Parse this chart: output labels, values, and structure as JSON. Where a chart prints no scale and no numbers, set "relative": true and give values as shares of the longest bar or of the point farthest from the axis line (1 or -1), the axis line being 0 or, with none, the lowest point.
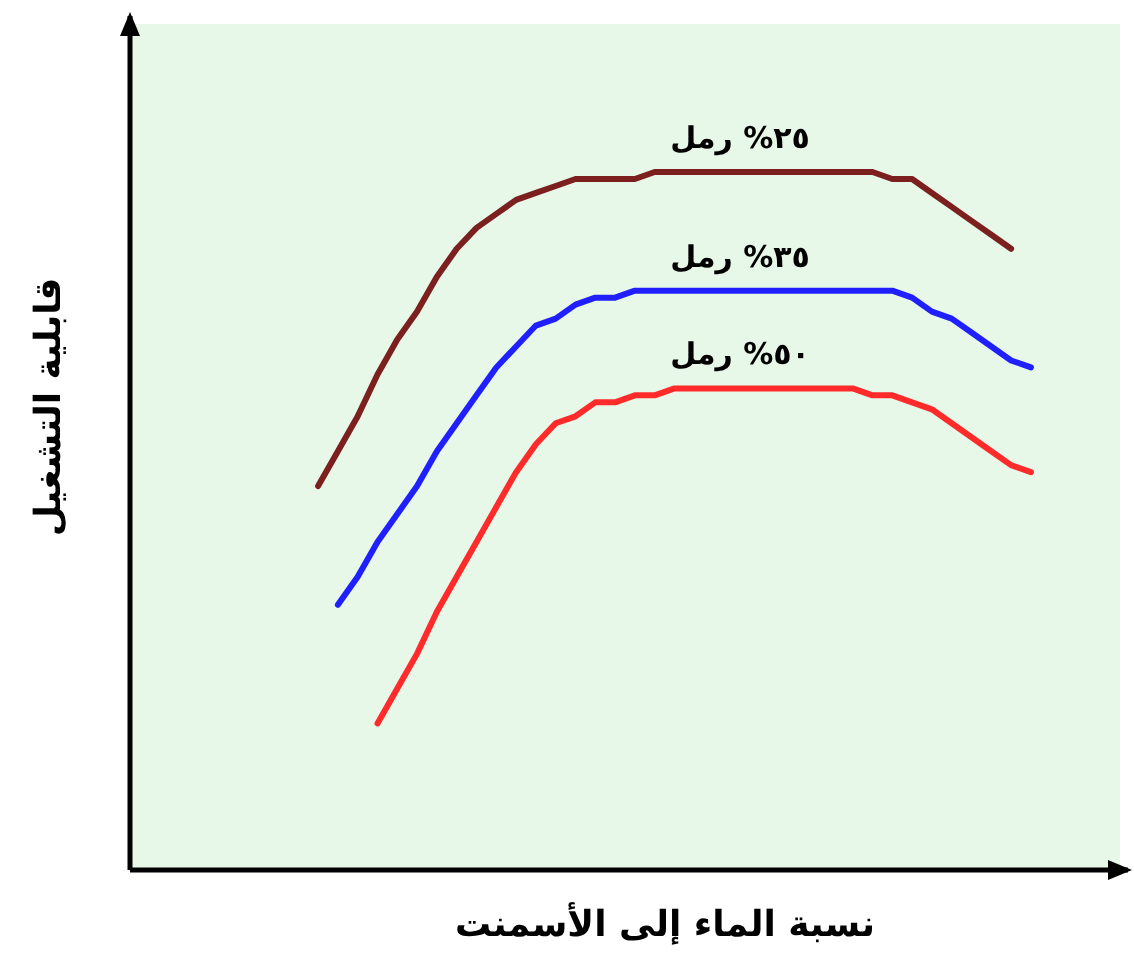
{
  "chart_data": {
    "type": "line",
    "relative": true,
    "xlabel": "نسبة الماء إلى الأسمنت",
    "ylabel": "قابلية التشغيل",
    "categories": [
      null,
      null,
      null,
      null,
      null,
      null,
      null,
      null,
      null,
      null,
      null,
      null,
      null,
      null,
      null,
      null,
      null,
      null,
      null,
      null,
      null,
      null,
      null,
      null,
      null,
      null,
      null,
      null,
      null,
      null,
      null,
      null,
      null,
      null,
      null,
      null,
      null,
      null,
      null,
      null,
      null,
      null,
      null,
      null,
      null,
      null,
      null,
      null,
      null,
      null
    ],
    "series": [
      {
        "name": "٢٥% رمل",
        "color": "#7b1f1f",
        "values": [
          null,
          null,
          null,
          null,
          null,
          null,
          null,
          null,
          null,
          0.55,
          0.6,
          0.65,
          0.71,
          0.76,
          0.8,
          0.85,
          0.89,
          0.92,
          0.94,
          0.96,
          0.97,
          0.98,
          0.99,
          0.99,
          0.99,
          0.99,
          1,
          1,
          1,
          1,
          1,
          1,
          1,
          1,
          1,
          1,
          1,
          1,
          0.99,
          0.99,
          0.97,
          0.95,
          0.93,
          0.91,
          0.89,
          null,
          null,
          null,
          null,
          null
        ]
      },
      {
        "name": "٣٥% رمل",
        "color": "#1f1fff",
        "values": [
          null,
          null,
          null,
          null,
          null,
          null,
          null,
          null,
          null,
          null,
          0.38,
          0.42,
          0.47,
          0.51,
          0.55,
          0.6,
          0.64,
          0.68,
          0.72,
          0.75,
          0.78,
          0.79,
          0.81,
          0.82,
          0.82,
          0.83,
          0.83,
          0.83,
          0.83,
          0.83,
          0.83,
          0.83,
          0.83,
          0.83,
          0.83,
          0.83,
          0.83,
          0.83,
          0.83,
          0.82,
          0.8,
          0.79,
          0.77,
          0.75,
          0.73,
          0.72,
          null,
          null,
          null,
          null
        ]
      },
      {
        "name": "٥٠% رمل",
        "color": "#ff2a2a",
        "values": [
          null,
          null,
          null,
          null,
          null,
          null,
          null,
          null,
          null,
          null,
          null,
          null,
          0.21,
          0.26,
          0.31,
          0.37,
          0.42,
          0.47,
          0.52,
          0.57,
          0.61,
          0.64,
          0.65,
          0.67,
          0.67,
          0.68,
          0.68,
          0.69,
          0.69,
          0.69,
          0.69,
          0.69,
          0.69,
          0.69,
          0.69,
          0.69,
          0.69,
          0.68,
          0.68,
          0.67,
          0.66,
          0.64,
          0.62,
          0.6,
          0.58,
          0.57,
          null,
          null,
          null,
          null
        ]
      }
    ]
  }
}
